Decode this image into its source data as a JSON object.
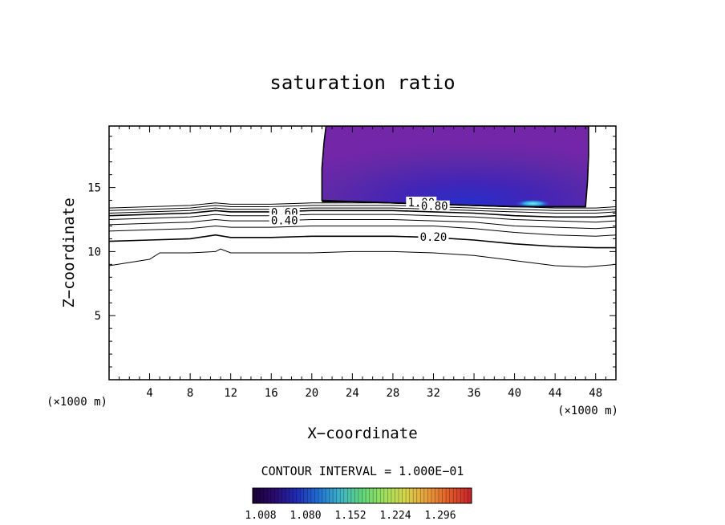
{
  "chart_data": {
    "type": "heatmap",
    "title": "saturation ratio",
    "xlabel": "X−coordinate",
    "ylabel": "Z−coordinate",
    "x_unit_left": "(×1000 m)",
    "x_unit_right": "(×1000 m)",
    "xlim": [
      0,
      50
    ],
    "ylim": [
      0,
      19.8
    ],
    "x_ticks": [
      4,
      8,
      12,
      16,
      20,
      24,
      28,
      32,
      36,
      40,
      44,
      48
    ],
    "x_tick_labels": [
      "4",
      "8",
      "12",
      "16",
      "20",
      "24",
      "28",
      "32",
      "36",
      "40",
      "44",
      "48"
    ],
    "y_ticks": [
      5,
      10,
      15
    ],
    "y_tick_labels": [
      "5",
      "10",
      "15"
    ],
    "grid": false,
    "contour_interval_text": "CONTOUR INTERVAL = 1.000E−01",
    "contour_levels": [
      0.1,
      0.2,
      0.3,
      0.4,
      0.5,
      0.6,
      0.7,
      0.8,
      0.9,
      1.0
    ],
    "contour_lines": [
      {
        "level": 0.1,
        "points": [
          [
            0,
            8.9
          ],
          [
            4,
            9.4
          ],
          [
            5,
            9.9
          ],
          [
            8,
            9.9
          ],
          [
            10.5,
            10.0
          ],
          [
            11,
            10.2
          ],
          [
            12,
            9.9
          ],
          [
            16,
            9.9
          ],
          [
            20,
            9.9
          ],
          [
            24,
            10.0
          ],
          [
            28,
            10.0
          ],
          [
            32,
            9.9
          ],
          [
            36,
            9.7
          ],
          [
            40,
            9.3
          ],
          [
            44,
            8.9
          ],
          [
            47,
            8.8
          ],
          [
            50,
            9.0
          ]
        ]
      },
      {
        "level": 0.2,
        "points": [
          [
            0,
            10.8
          ],
          [
            4,
            10.9
          ],
          [
            8,
            11.0
          ],
          [
            10.5,
            11.3
          ],
          [
            12,
            11.1
          ],
          [
            16,
            11.1
          ],
          [
            20,
            11.2
          ],
          [
            24,
            11.2
          ],
          [
            28,
            11.2
          ],
          [
            32,
            11.1
          ],
          [
            36,
            10.9
          ],
          [
            40,
            10.6
          ],
          [
            44,
            10.4
          ],
          [
            48,
            10.3
          ],
          [
            50,
            10.3
          ]
        ]
      },
      {
        "level": 0.3,
        "points": [
          [
            0,
            11.6
          ],
          [
            4,
            11.7
          ],
          [
            8,
            11.8
          ],
          [
            10.5,
            12.0
          ],
          [
            12,
            11.9
          ],
          [
            16,
            11.9
          ],
          [
            20,
            12.0
          ],
          [
            24,
            12.0
          ],
          [
            28,
            12.0
          ],
          [
            32,
            12.0
          ],
          [
            36,
            11.8
          ],
          [
            40,
            11.5
          ],
          [
            44,
            11.3
          ],
          [
            48,
            11.2
          ],
          [
            50,
            11.3
          ]
        ]
      },
      {
        "level": 0.4,
        "points": [
          [
            0,
            12.1
          ],
          [
            4,
            12.2
          ],
          [
            8,
            12.3
          ],
          [
            10.5,
            12.5
          ],
          [
            12,
            12.4
          ],
          [
            16,
            12.4
          ],
          [
            20,
            12.5
          ],
          [
            24,
            12.5
          ],
          [
            28,
            12.5
          ],
          [
            32,
            12.4
          ],
          [
            36,
            12.3
          ],
          [
            40,
            12.0
          ],
          [
            44,
            11.9
          ],
          [
            48,
            11.8
          ],
          [
            50,
            11.9
          ]
        ]
      },
      {
        "level": 0.5,
        "points": [
          [
            0,
            12.5
          ],
          [
            4,
            12.6
          ],
          [
            8,
            12.7
          ],
          [
            10.5,
            12.9
          ],
          [
            12,
            12.8
          ],
          [
            16,
            12.8
          ],
          [
            20,
            12.9
          ],
          [
            24,
            12.9
          ],
          [
            28,
            12.9
          ],
          [
            32,
            12.8
          ],
          [
            36,
            12.7
          ],
          [
            40,
            12.5
          ],
          [
            44,
            12.4
          ],
          [
            48,
            12.3
          ],
          [
            50,
            12.4
          ]
        ]
      },
      {
        "level": 0.6,
        "points": [
          [
            0,
            12.8
          ],
          [
            4,
            12.9
          ],
          [
            8,
            13.0
          ],
          [
            10.5,
            13.2
          ],
          [
            12,
            13.1
          ],
          [
            16,
            13.1
          ],
          [
            20,
            13.2
          ],
          [
            24,
            13.2
          ],
          [
            28,
            13.2
          ],
          [
            32,
            13.1
          ],
          [
            36,
            13.0
          ],
          [
            40,
            12.8
          ],
          [
            44,
            12.7
          ],
          [
            48,
            12.7
          ],
          [
            50,
            12.8
          ]
        ]
      },
      {
        "level": 0.7,
        "points": [
          [
            0,
            13.0
          ],
          [
            4,
            13.1
          ],
          [
            8,
            13.2
          ],
          [
            10.5,
            13.4
          ],
          [
            12,
            13.3
          ],
          [
            16,
            13.3
          ],
          [
            20,
            13.4
          ],
          [
            24,
            13.4
          ],
          [
            28,
            13.4
          ],
          [
            32,
            13.3
          ],
          [
            36,
            13.2
          ],
          [
            40,
            13.1
          ],
          [
            44,
            13.0
          ],
          [
            48,
            13.0
          ],
          [
            50,
            13.1
          ]
        ]
      },
      {
        "level": 0.8,
        "points": [
          [
            0,
            13.2
          ],
          [
            4,
            13.3
          ],
          [
            8,
            13.4
          ],
          [
            10.5,
            13.6
          ],
          [
            12,
            13.5
          ],
          [
            16,
            13.5
          ],
          [
            20,
            13.6
          ],
          [
            24,
            13.6
          ],
          [
            28,
            13.6
          ],
          [
            32,
            13.5
          ],
          [
            36,
            13.4
          ],
          [
            40,
            13.3
          ],
          [
            44,
            13.2
          ],
          [
            48,
            13.2
          ],
          [
            50,
            13.3
          ]
        ]
      },
      {
        "level": 0.9,
        "points": [
          [
            0,
            13.4
          ],
          [
            4,
            13.5
          ],
          [
            8,
            13.6
          ],
          [
            10.5,
            13.8
          ],
          [
            12,
            13.7
          ],
          [
            16,
            13.7
          ],
          [
            20,
            13.8
          ],
          [
            24,
            13.8
          ],
          [
            28,
            13.8
          ],
          [
            32,
            13.7
          ],
          [
            36,
            13.6
          ],
          [
            40,
            13.5
          ],
          [
            44,
            13.4
          ],
          [
            48,
            13.4
          ],
          [
            50,
            13.5
          ]
        ]
      },
      {
        "level": 1.0,
        "points": [
          [
            21,
            13.9
          ],
          [
            24,
            13.9
          ],
          [
            28,
            13.8
          ],
          [
            32,
            13.7
          ],
          [
            36,
            13.6
          ],
          [
            40,
            13.5
          ],
          [
            44,
            13.5
          ],
          [
            47,
            13.5
          ]
        ]
      }
    ],
    "contour_labels": [
      {
        "text": "1.00",
        "x": 30.8,
        "y": 13.85
      },
      {
        "text": "0.80",
        "x": 32.1,
        "y": 13.55
      },
      {
        "text": "0.60",
        "x": 17.3,
        "y": 13.05
      },
      {
        "text": "0.40",
        "x": 17.3,
        "y": 12.45
      },
      {
        "text": "0.20",
        "x": 32.0,
        "y": 11.15
      }
    ],
    "supersaturated_region": {
      "x_range": [
        21,
        47
      ],
      "z_range": [
        13.5,
        19.8
      ],
      "outline": [
        [
          21.4,
          19.8
        ],
        [
          21.2,
          18.5
        ],
        [
          21.0,
          16.5
        ],
        [
          21.0,
          14.0
        ],
        [
          24,
          13.9
        ],
        [
          28,
          13.8
        ],
        [
          32,
          13.7
        ],
        [
          36,
          13.6
        ],
        [
          40,
          13.5
        ],
        [
          44,
          13.5
        ],
        [
          47,
          13.5
        ],
        [
          47.2,
          15.5
        ],
        [
          47.3,
          17.5
        ],
        [
          47.3,
          19.8
        ]
      ],
      "min_value": 1.008,
      "max_value": 1.08
    },
    "colorbar": {
      "colors": [
        "#1a0033",
        "#2a0a6e",
        "#1f2bb5",
        "#1f6fd0",
        "#3fb4c8",
        "#5fd67a",
        "#9ee05c",
        "#d7d44a",
        "#e89a3a",
        "#e05a28",
        "#c8202a"
      ],
      "tick_labels": [
        "1.008",
        "1.080",
        "1.152",
        "1.224",
        "1.296"
      ]
    }
  }
}
